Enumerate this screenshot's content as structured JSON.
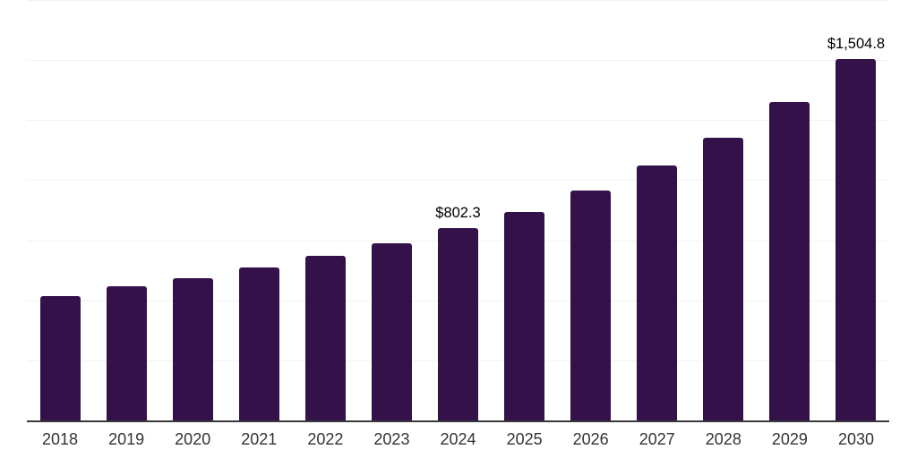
{
  "chart_data": {
    "type": "bar",
    "title": "",
    "xlabel": "",
    "ylabel": "",
    "categories": [
      "2018",
      "2019",
      "2020",
      "2021",
      "2022",
      "2023",
      "2024",
      "2025",
      "2026",
      "2027",
      "2028",
      "2029",
      "2030"
    ],
    "values": [
      518,
      557,
      594,
      636,
      686,
      738,
      802.3,
      868,
      957,
      1060,
      1176,
      1327,
      1504.8
    ],
    "data_labels": [
      "",
      "",
      "",
      "",
      "",
      "",
      "$802.3",
      "",
      "",
      "",
      "",
      "",
      "$1,504.8"
    ],
    "ylim": [
      0,
      1750
    ],
    "grid": true,
    "gridline_step": 250,
    "legend_position": "none",
    "y_axis_labels_visible": false,
    "bar_color": "#351149",
    "gridline_color": "#F2F2F2",
    "axis_line_color": "#37383C",
    "tick_label_color": "#333333",
    "data_label_color": "#000000",
    "background_color": "#FFFFFF"
  }
}
